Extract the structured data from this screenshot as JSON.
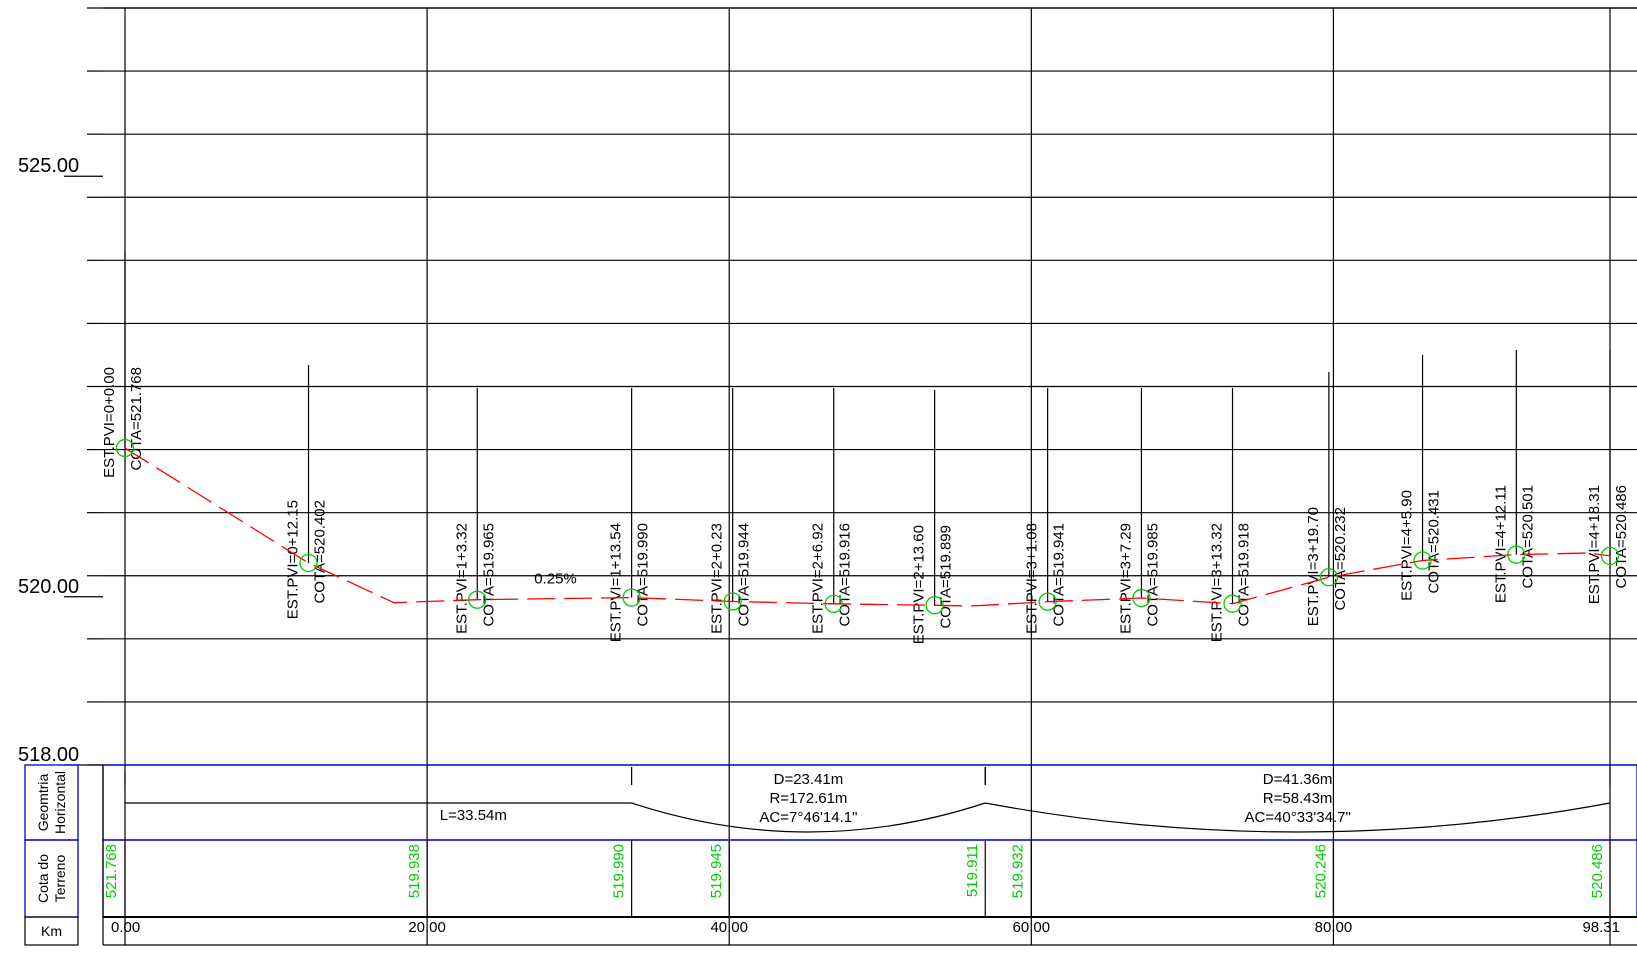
{
  "colors": {
    "grid": "#000000",
    "profile": "#ff0000",
    "pvi_marker": "#00cc00",
    "terrain_text": "#00cc00",
    "band_border": "#0000cc"
  },
  "chart_data": {
    "type": "line",
    "title": "",
    "xlabel": "",
    "ylabel": "",
    "xlim": [
      0,
      98.31
    ],
    "ylim": [
      518.0,
      527.0
    ],
    "y_labels": [
      "525.00",
      "520.00",
      "518.00"
    ],
    "x_labels": [
      "0.00",
      "20.00",
      "40.00",
      "60.00",
      "80.00",
      "98.31"
    ],
    "grade_label": "0.25%",
    "series": [
      {
        "values_x": [
          0.0,
          12.15,
          17.8,
          23.32,
          33.54,
          40.23,
          46.92,
          53.6,
          56.0,
          61.08,
          67.29,
          73.32,
          79.7,
          85.9,
          92.11,
          96.9,
          98.31
        ],
        "values_y": [
          521.768,
          520.402,
          519.93,
          519.965,
          519.99,
          519.944,
          519.916,
          519.899,
          519.89,
          519.941,
          519.985,
          519.918,
          520.232,
          520.431,
          520.501,
          520.52,
          520.486
        ]
      }
    ],
    "pvi": [
      {
        "est": 0.0,
        "cota": 521.768,
        "est_label": "EST.PVI=0+0.00",
        "cota_label": "COTA=521.768"
      },
      {
        "est": 12.15,
        "cota": 520.402,
        "est_label": "EST.PVI=0+12.15",
        "cota_label": "COTA=520.402"
      },
      {
        "est": 23.32,
        "cota": 519.965,
        "est_label": "EST.PVI=1+3.32",
        "cota_label": "COTA=519.965"
      },
      {
        "est": 33.54,
        "cota": 519.99,
        "est_label": "EST.PVI=1+13.54",
        "cota_label": "COTA=519.990"
      },
      {
        "est": 40.23,
        "cota": 519.944,
        "est_label": "EST.PVI=2+0.23",
        "cota_label": "COTA=519.944"
      },
      {
        "est": 46.92,
        "cota": 519.916,
        "est_label": "EST.PVI=2+6.92",
        "cota_label": "COTA=519.916"
      },
      {
        "est": 53.6,
        "cota": 519.899,
        "est_label": "EST.PVI=2+13.60",
        "cota_label": "COTA=519.899"
      },
      {
        "est": 61.08,
        "cota": 519.941,
        "est_label": "EST.PVI=3+1.08",
        "cota_label": "COTA=519.941"
      },
      {
        "est": 67.29,
        "cota": 519.985,
        "est_label": "EST.PVI=3+7.29",
        "cota_label": "COTA=519.985"
      },
      {
        "est": 73.32,
        "cota": 519.918,
        "est_label": "EST.PVI=3+13.32",
        "cota_label": "COTA=519.918"
      },
      {
        "est": 79.7,
        "cota": 520.232,
        "est_label": "EST.PVI=3+19.70",
        "cota_label": "COTA=520.232"
      },
      {
        "est": 85.9,
        "cota": 520.431,
        "est_label": "EST.PVI=4+5.90",
        "cota_label": "COTA=520.431"
      },
      {
        "est": 92.11,
        "cota": 520.501,
        "est_label": "EST.PVI=4+12.11",
        "cota_label": "COTA=520.501"
      },
      {
        "est": 98.31,
        "cota": 520.486,
        "est_label": "EST.PVI=4+18.31",
        "cota_label": "COTA=520.486"
      }
    ]
  },
  "bands": {
    "geometry_label_1": "Geomtria",
    "geometry_label_2": "Horizontal",
    "terrain_label_1": "Cota do",
    "terrain_label_2": "Terreno",
    "km_label": "Km",
    "geometry": {
      "tangent": {
        "start": 0.0,
        "end": 33.54,
        "label": "L=33.54m"
      },
      "curves": [
        {
          "start": 33.54,
          "end": 56.95,
          "lines": [
            "D=23.41m",
            "R=172.61m",
            "AC=7°46'14.1\""
          ]
        },
        {
          "start": 56.95,
          "end": 98.31,
          "lines": [
            "D=41.36m",
            "R=58.43m",
            "AC=40°33'34.7\""
          ]
        }
      ]
    },
    "terrain": [
      {
        "est": 0.0,
        "label": "521.768"
      },
      {
        "est": 20.0,
        "label": "519.938"
      },
      {
        "est": 33.54,
        "label": "519.990"
      },
      {
        "est": 40.0,
        "label": "519.945"
      },
      {
        "est": 56.95,
        "label": "519.911"
      },
      {
        "est": 60.0,
        "label": "519.932"
      },
      {
        "est": 80.0,
        "label": "520.246"
      },
      {
        "est": 98.31,
        "label": "520.486"
      }
    ]
  }
}
